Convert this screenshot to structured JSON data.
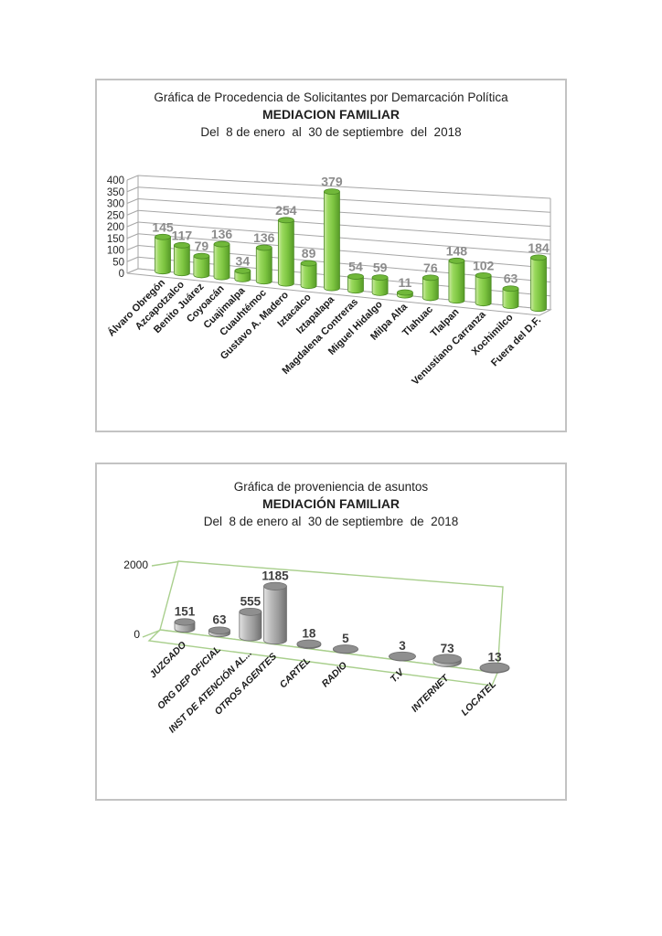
{
  "page": {
    "background": "#ffffff",
    "panel_border_color": "#c3c3c3"
  },
  "chart_data": [
    {
      "type": "bar",
      "style": "3d-cylinder",
      "title": "Gráfica de Procedencia de Solicitantes por Demarcación Política",
      "subtitle": "MEDIACION FAMILIAR",
      "period": "Del  8 de enero  al  30 de septiembre  del  2018",
      "categories": [
        "Álvaro Obregón",
        "Azcapotzalco",
        "Benito Juárez",
        "Coyoacán",
        "Cuajimalpa",
        "Cuauhtémoc",
        "Gustavo A. Madero",
        "Iztacalco",
        "Iztapalapa",
        "Magdalena Contreras",
        "Miguel Hidalgo",
        "Milpa Alta",
        "Tlahuac",
        "Tlalpan",
        "Venustiano Carranza",
        "Xochimilco",
        "Fuera del D.F."
      ],
      "values": [
        145,
        117,
        79,
        136,
        34,
        136,
        254,
        89,
        379,
        54,
        59,
        11,
        76,
        148,
        102,
        63,
        184
      ],
      "xlabel": "",
      "ylabel": "",
      "ylim": [
        0,
        400
      ],
      "yticks": [
        0,
        50,
        100,
        150,
        200,
        250,
        300,
        350,
        400
      ],
      "grid": true,
      "legend": "none",
      "bar_color": "#7cc440",
      "bar_color_dark": "#4a8a22",
      "bar_top_color": "#71b83a",
      "axis_line_color": "#a6a6a6",
      "value_label_color": "#8c8c8c",
      "tick_label_color": "#262626",
      "category_label_color": "#1a1a1a"
    },
    {
      "type": "bar",
      "style": "3d-cylinder",
      "title": "Gráfica de proveniencia de asuntos",
      "subtitle": "MEDIACIÓN FAMILIAR",
      "period": "Del  8 de enero al  30 de septiembre  de  2018",
      "categories": [
        "JUZGADO",
        "ORG DEP OFICIAL",
        "INST DE ATENCIÓN AL...",
        "OTROS AGENTES",
        "CARTEL",
        "RADIO",
        "T.V",
        "INTERNET",
        "LOCATEL"
      ],
      "values": [
        151,
        63,
        555,
        1185,
        18,
        5,
        3,
        73,
        13
      ],
      "xlabel": "",
      "ylabel": "",
      "ylim": [
        0,
        2000
      ],
      "yticks": [
        0,
        2000
      ],
      "grid": false,
      "legend": "none",
      "bar_color": "#a6a6a6",
      "bar_color_dark": "#6e6e6e",
      "bar_top_color": "#8f8f8f",
      "frame_color": "#a9cf8d",
      "value_label_color": "#3f3f3f",
      "tick_label_color": "#1a1a1a",
      "category_label_color": "#1a1a1a"
    }
  ]
}
